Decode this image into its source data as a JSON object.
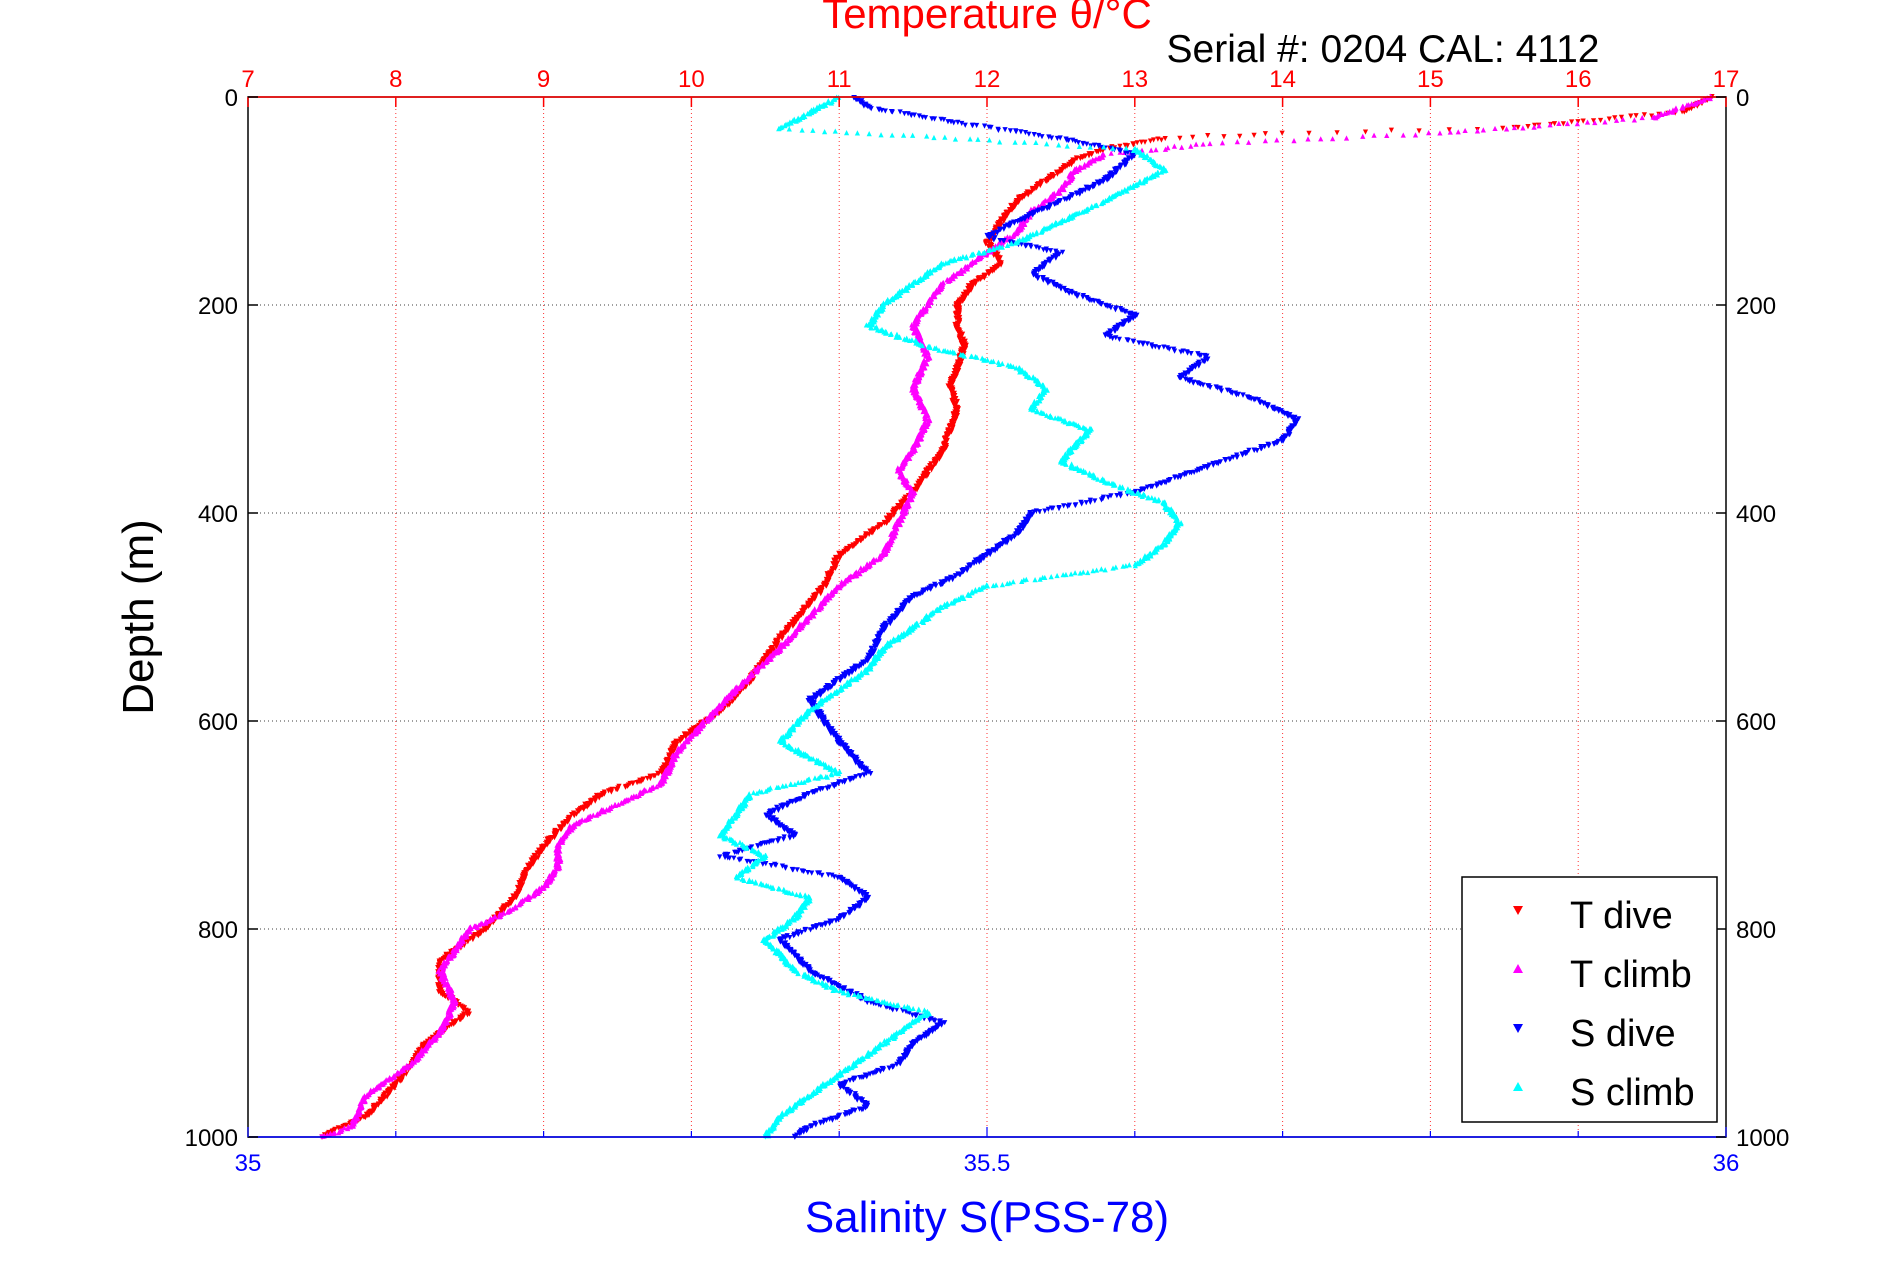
{
  "figure": {
    "top_title": "Temperature θ/°C",
    "serial_label": "Serial #: 0204  CAL: 4112",
    "ylabel": "Depth (m)",
    "bottom_xlabel": "Salinity S(PSS-78)"
  },
  "colors": {
    "t_dive": "#ff0000",
    "t_climb": "#ff00ff",
    "s_dive": "#0000ff",
    "s_climb": "#00ffff",
    "temp_axis": "#ff0000",
    "salinity_axis": "#0000ff"
  },
  "legend": {
    "t_dive": "T dive",
    "t_climb": "T climb",
    "s_dive": "S dive",
    "s_climb": "S climb"
  },
  "chart_data": {
    "type": "scatter",
    "grid": true,
    "legend_position": "bottom-right",
    "y_axis": {
      "label": "Depth (m)",
      "range": [
        0,
        1000
      ],
      "reversed": true,
      "ticks": [
        0,
        200,
        400,
        600,
        800,
        1000
      ],
      "tick_labels": [
        "0",
        "200",
        "400",
        "600",
        "800",
        "1000"
      ]
    },
    "top_x_axis": {
      "label": "Temperature θ/°C",
      "range": [
        7,
        17
      ],
      "ticks": [
        7,
        8,
        9,
        10,
        11,
        12,
        13,
        14,
        15,
        16,
        17
      ],
      "tick_labels": [
        "7",
        "8",
        "9",
        "10",
        "11",
        "12",
        "13",
        "14",
        "15",
        "16",
        "17"
      ]
    },
    "bottom_x_axis": {
      "label": "Salinity S(PSS-78)",
      "range": [
        35,
        36
      ],
      "ticks": [
        35,
        35.5,
        36
      ],
      "tick_labels": [
        "35",
        "35.5",
        "36"
      ]
    },
    "series": [
      {
        "key": "t_dive",
        "name": "T dive",
        "axis": "temperature",
        "marker": "down-triangle",
        "points": [
          [
            16.9,
            0
          ],
          [
            16.7,
            15
          ],
          [
            15.5,
            30
          ],
          [
            14.0,
            35
          ],
          [
            13.2,
            40
          ],
          [
            12.8,
            50
          ],
          [
            12.6,
            60
          ],
          [
            12.4,
            80
          ],
          [
            12.2,
            100
          ],
          [
            12.1,
            120
          ],
          [
            12.0,
            140
          ],
          [
            12.1,
            160
          ],
          [
            11.9,
            180
          ],
          [
            11.8,
            200
          ],
          [
            11.8,
            220
          ],
          [
            11.85,
            240
          ],
          [
            11.8,
            260
          ],
          [
            11.75,
            280
          ],
          [
            11.8,
            300
          ],
          [
            11.7,
            340
          ],
          [
            11.5,
            380
          ],
          [
            11.3,
            410
          ],
          [
            11.0,
            440
          ],
          [
            10.9,
            470
          ],
          [
            10.6,
            520
          ],
          [
            10.4,
            560
          ],
          [
            10.2,
            590
          ],
          [
            9.9,
            620
          ],
          [
            9.8,
            650
          ],
          [
            9.4,
            670
          ],
          [
            9.2,
            690
          ],
          [
            9.0,
            720
          ],
          [
            8.9,
            740
          ],
          [
            8.8,
            770
          ],
          [
            8.6,
            800
          ],
          [
            8.3,
            830
          ],
          [
            8.3,
            860
          ],
          [
            8.5,
            880
          ],
          [
            8.2,
            910
          ],
          [
            8.0,
            950
          ],
          [
            7.8,
            980
          ],
          [
            7.5,
            1000
          ]
        ]
      },
      {
        "key": "t_climb",
        "name": "T climb",
        "axis": "temperature",
        "marker": "up-triangle",
        "points": [
          [
            16.9,
            0
          ],
          [
            16.5,
            20
          ],
          [
            15.0,
            35
          ],
          [
            13.5,
            45
          ],
          [
            12.8,
            55
          ],
          [
            12.6,
            70
          ],
          [
            12.5,
            90
          ],
          [
            12.3,
            110
          ],
          [
            12.2,
            130
          ],
          [
            12.0,
            150
          ],
          [
            11.7,
            180
          ],
          [
            11.6,
            200
          ],
          [
            11.5,
            220
          ],
          [
            11.6,
            250
          ],
          [
            11.5,
            280
          ],
          [
            11.6,
            310
          ],
          [
            11.5,
            340
          ],
          [
            11.4,
            360
          ],
          [
            11.5,
            380
          ],
          [
            11.4,
            410
          ],
          [
            11.3,
            440
          ],
          [
            11.0,
            470
          ],
          [
            10.8,
            500
          ],
          [
            10.6,
            530
          ],
          [
            10.3,
            570
          ],
          [
            10.1,
            600
          ],
          [
            9.9,
            630
          ],
          [
            9.8,
            660
          ],
          [
            9.5,
            680
          ],
          [
            9.2,
            700
          ],
          [
            9.1,
            720
          ],
          [
            9.1,
            740
          ],
          [
            9.0,
            760
          ],
          [
            8.8,
            780
          ],
          [
            8.5,
            800
          ],
          [
            8.3,
            840
          ],
          [
            8.4,
            870
          ],
          [
            8.3,
            900
          ],
          [
            8.1,
            930
          ],
          [
            7.8,
            960
          ],
          [
            7.7,
            990
          ],
          [
            7.5,
            1000
          ]
        ]
      },
      {
        "key": "s_dive",
        "name": "S dive",
        "axis": "salinity",
        "marker": "down-triangle",
        "points": [
          [
            35.41,
            0
          ],
          [
            35.42,
            10
          ],
          [
            35.48,
            25
          ],
          [
            35.55,
            40
          ],
          [
            35.6,
            55
          ],
          [
            35.58,
            80
          ],
          [
            35.55,
            100
          ],
          [
            35.52,
            120
          ],
          [
            35.5,
            135
          ],
          [
            35.55,
            150
          ],
          [
            35.53,
            170
          ],
          [
            35.56,
            190
          ],
          [
            35.6,
            210
          ],
          [
            35.58,
            230
          ],
          [
            35.65,
            250
          ],
          [
            35.63,
            270
          ],
          [
            35.68,
            290
          ],
          [
            35.71,
            310
          ],
          [
            35.7,
            330
          ],
          [
            35.66,
            350
          ],
          [
            35.6,
            380
          ],
          [
            35.53,
            400
          ],
          [
            35.52,
            420
          ],
          [
            35.5,
            440
          ],
          [
            35.48,
            460
          ],
          [
            35.45,
            480
          ],
          [
            35.43,
            510
          ],
          [
            35.42,
            540
          ],
          [
            35.4,
            560
          ],
          [
            35.38,
            580
          ],
          [
            35.4,
            620
          ],
          [
            35.42,
            650
          ],
          [
            35.38,
            670
          ],
          [
            35.35,
            690
          ],
          [
            35.37,
            710
          ],
          [
            35.32,
            730
          ],
          [
            35.4,
            750
          ],
          [
            35.42,
            770
          ],
          [
            35.4,
            790
          ],
          [
            35.36,
            810
          ],
          [
            35.38,
            840
          ],
          [
            35.42,
            870
          ],
          [
            35.47,
            890
          ],
          [
            35.45,
            910
          ],
          [
            35.44,
            930
          ],
          [
            35.4,
            950
          ],
          [
            35.42,
            970
          ],
          [
            35.38,
            990
          ],
          [
            35.37,
            1000
          ]
        ]
      },
      {
        "key": "s_climb",
        "name": "S climb",
        "axis": "salinity",
        "marker": "up-triangle",
        "points": [
          [
            35.4,
            0
          ],
          [
            35.38,
            15
          ],
          [
            35.36,
            30
          ],
          [
            35.6,
            50
          ],
          [
            35.62,
            70
          ],
          [
            35.58,
            100
          ],
          [
            35.55,
            120
          ],
          [
            35.52,
            140
          ],
          [
            35.47,
            160
          ],
          [
            35.45,
            180
          ],
          [
            35.43,
            200
          ],
          [
            35.42,
            220
          ],
          [
            35.46,
            240
          ],
          [
            35.52,
            260
          ],
          [
            35.54,
            280
          ],
          [
            35.53,
            300
          ],
          [
            35.57,
            320
          ],
          [
            35.55,
            350
          ],
          [
            35.58,
            370
          ],
          [
            35.62,
            390
          ],
          [
            35.63,
            410
          ],
          [
            35.62,
            430
          ],
          [
            35.6,
            450
          ],
          [
            35.5,
            470
          ],
          [
            35.47,
            490
          ],
          [
            35.45,
            510
          ],
          [
            35.43,
            530
          ],
          [
            35.42,
            550
          ],
          [
            35.4,
            570
          ],
          [
            35.38,
            590
          ],
          [
            35.36,
            620
          ],
          [
            35.4,
            650
          ],
          [
            35.34,
            670
          ],
          [
            35.33,
            690
          ],
          [
            35.32,
            710
          ],
          [
            35.35,
            730
          ],
          [
            35.33,
            750
          ],
          [
            35.38,
            770
          ],
          [
            35.37,
            790
          ],
          [
            35.35,
            810
          ],
          [
            35.37,
            840
          ],
          [
            35.4,
            860
          ],
          [
            35.46,
            880
          ],
          [
            35.44,
            900
          ],
          [
            35.42,
            920
          ],
          [
            35.4,
            940
          ],
          [
            35.38,
            960
          ],
          [
            35.36,
            980
          ],
          [
            35.35,
            1000
          ]
        ]
      }
    ]
  }
}
